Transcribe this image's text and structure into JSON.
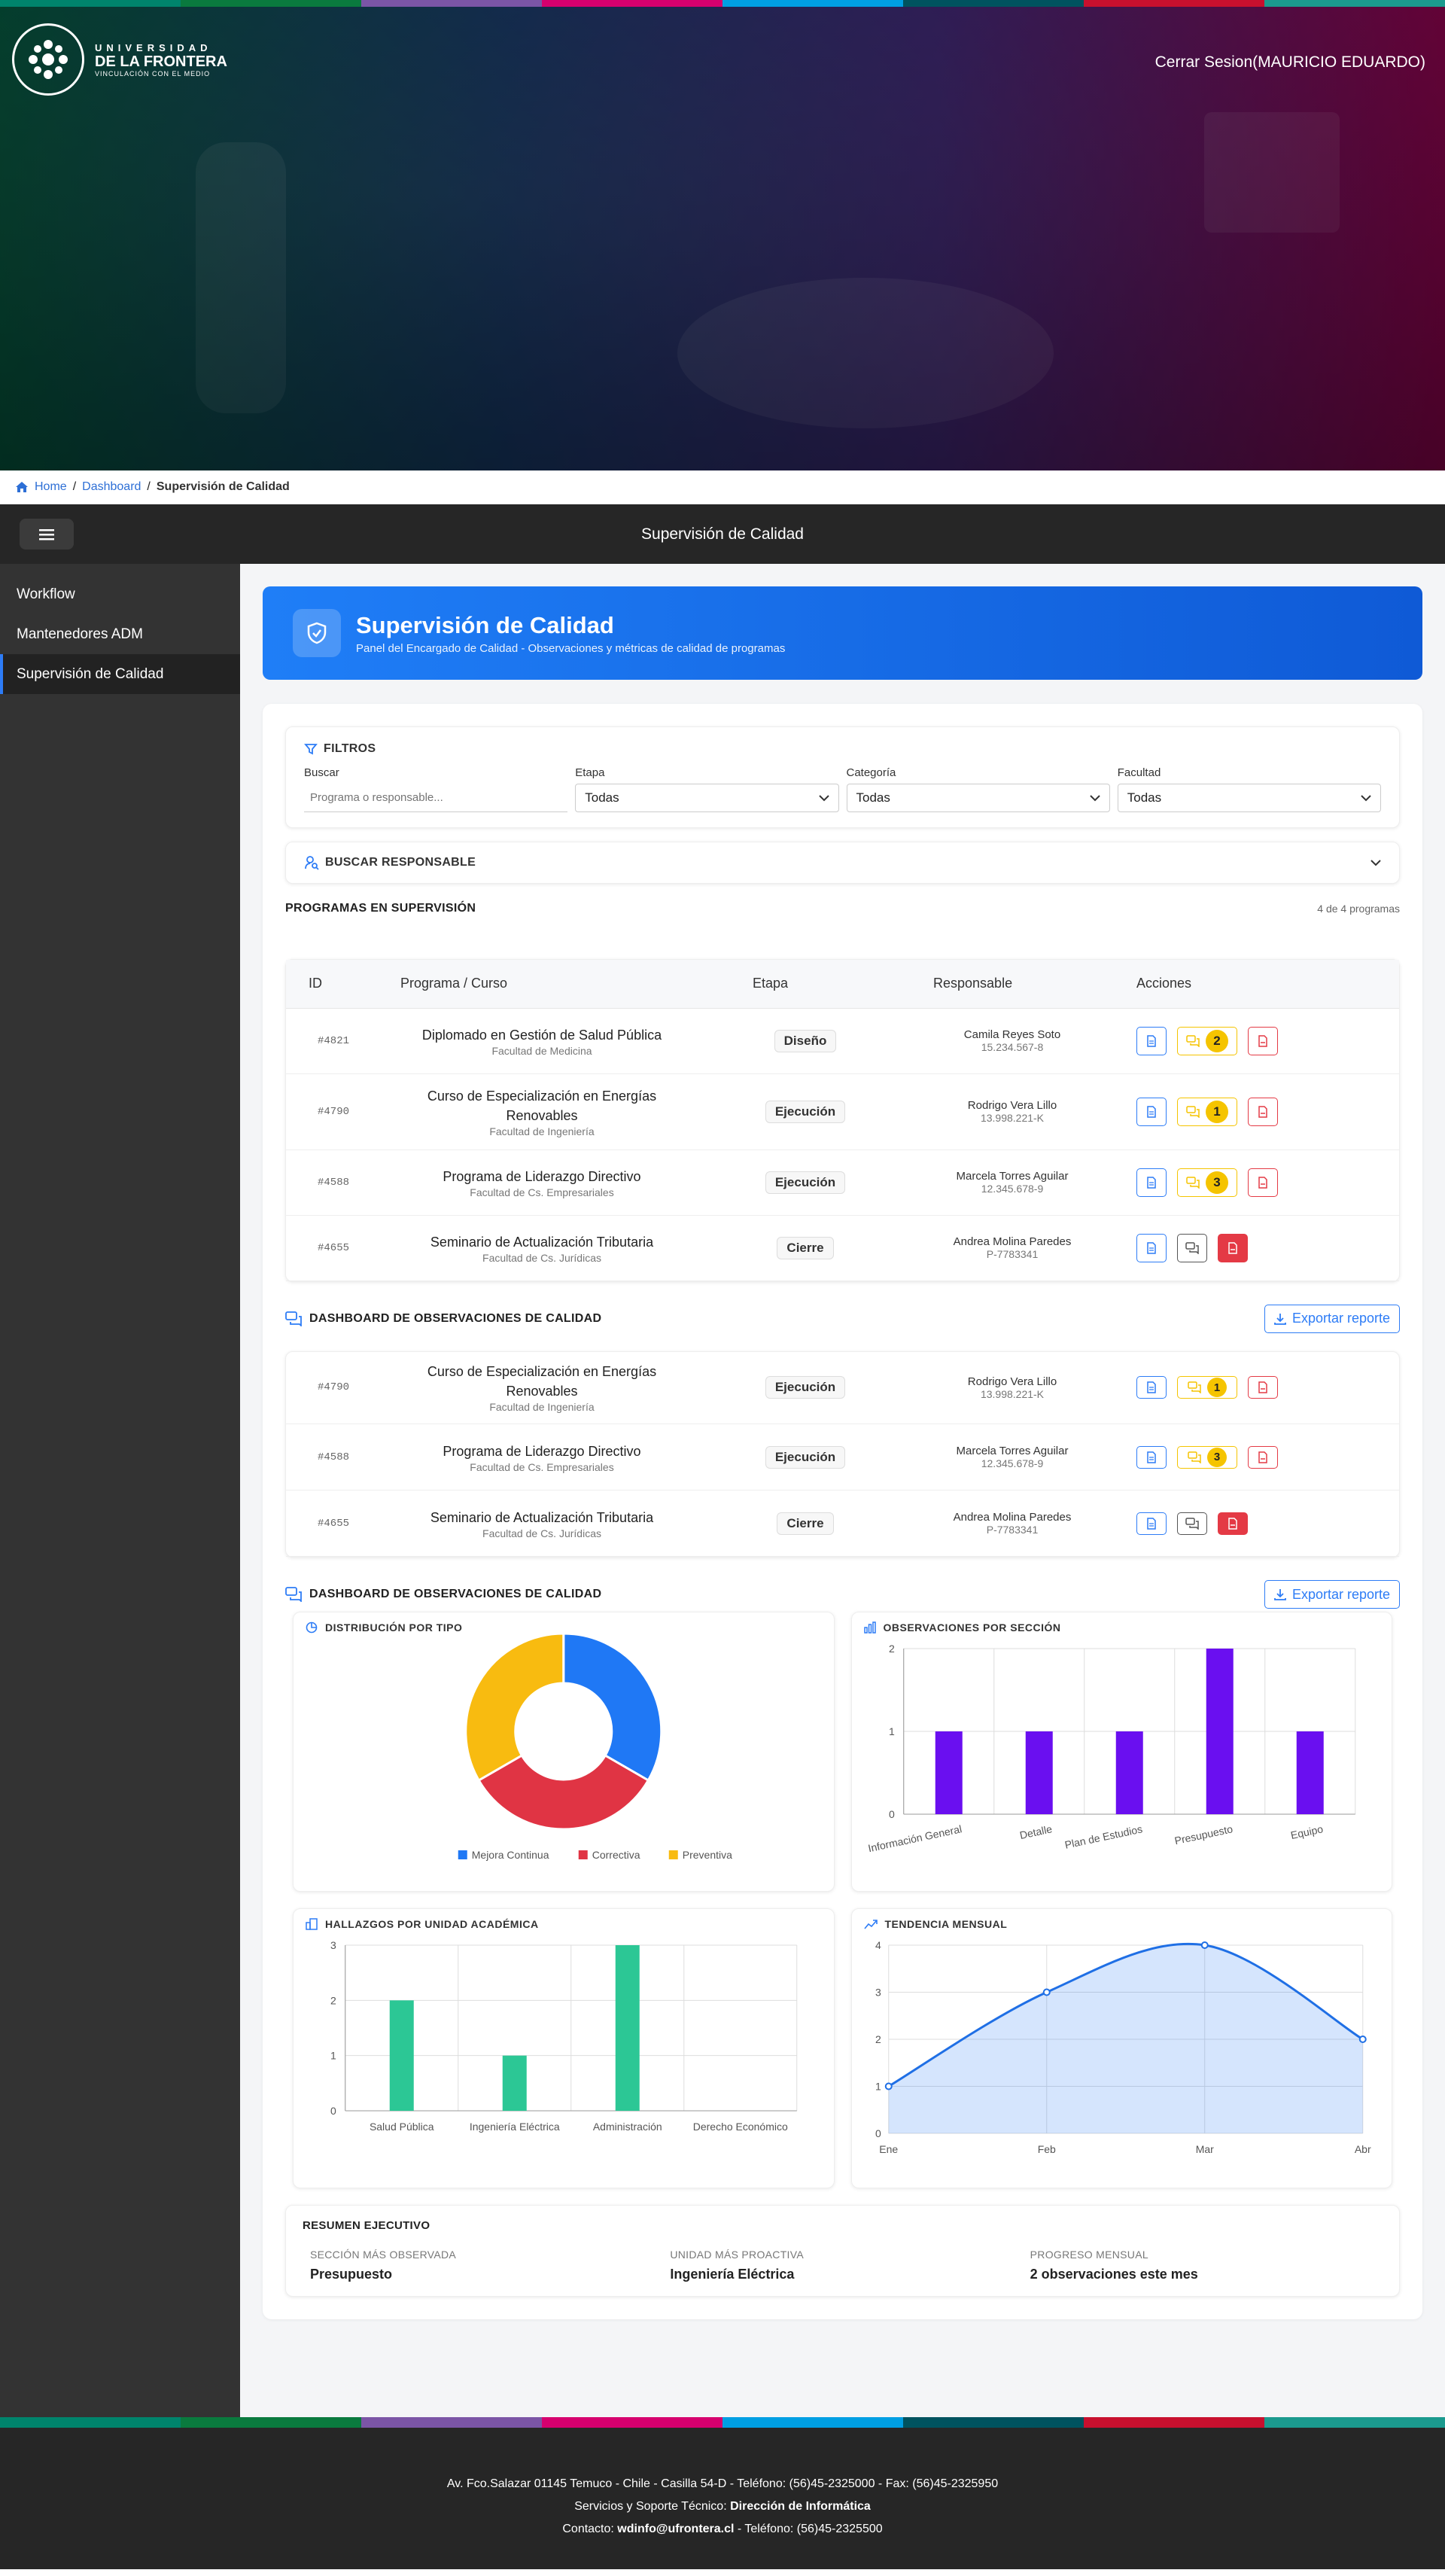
{
  "colors": {
    "stripe": [
      "#00846c",
      "#0a7a3e",
      "#7b55a6",
      "#d6006e",
      "#009fe3",
      "#00535f",
      "#c8102e",
      "#1b9a8e"
    ],
    "accent": "#2d7cf6",
    "warn": "#f5c400",
    "danger": "#e43a45",
    "green": "#2cc795",
    "purple": "#6a0ff0"
  },
  "header": {
    "logo_text1": "UNIVERSIDAD",
    "logo_text2": "DE LA FRONTERA",
    "logo_text3": "VINCULACIÓN CON EL MEDIO",
    "logout": "Cerrar Sesion(MAURICIO EDUARDO)"
  },
  "breadcrumb": {
    "home": "Home",
    "dashboard": "Dashboard",
    "current": "Supervisión de Calidad"
  },
  "topbar": {
    "title": "Supervisión de Calidad"
  },
  "sidebar": {
    "items": [
      {
        "label": "Workflow"
      },
      {
        "label": "Mantenedores ADM"
      },
      {
        "label": "Supervisión de Calidad"
      }
    ]
  },
  "page": {
    "title": "Supervisión de Calidad",
    "subtitle": "Panel del Encargado de Calidad - Observaciones y métricas de calidad de programas"
  },
  "filters": {
    "title": "FILTROS",
    "buscar_label": "Buscar",
    "buscar_placeholder": "Programa o responsable...",
    "etapa_label": "Etapa",
    "etapa_value": "Todas",
    "categoria_label": "Categoría",
    "categoria_value": "Todas",
    "facultad_label": "Facultad",
    "facultad_value": "Todas"
  },
  "search_resp": {
    "title": "BUSCAR RESPONSABLE"
  },
  "programs": {
    "title": "PROGRAMAS EN SUPERVISIÓN",
    "count": "4 de 4 programas",
    "headers": [
      "ID",
      "Programa / Curso",
      "Etapa",
      "Responsable",
      "Acciones"
    ],
    "rows": [
      {
        "id": "#4821",
        "name": "Diplomado en Gestión de Salud Pública",
        "faculty": "Facultad de Medicina",
        "stage": "Diseño",
        "resp": "Camila Reyes Soto",
        "rut": "15.234.567-8",
        "obs": "2"
      },
      {
        "id": "#4790",
        "name": "Curso de Especialización en Energías Renovables",
        "faculty": "Facultad de Ingeniería",
        "stage": "Ejecución",
        "resp": "Rodrigo Vera Lillo",
        "rut": "13.998.221-K",
        "obs": "1"
      },
      {
        "id": "#4588",
        "name": "Programa de Liderazgo Directivo",
        "faculty": "Facultad de Cs. Empresariales",
        "stage": "Ejecución",
        "resp": "Marcela Torres Aguilar",
        "rut": "12.345.678-9",
        "obs": "3"
      },
      {
        "id": "#4655",
        "name": "Seminario de Actualización Tributaria",
        "faculty": "Facultad de Cs. Jurídicas",
        "stage": "Cierre",
        "resp": "Andrea Molina Paredes",
        "rut": "P-7783341",
        "obs": ""
      }
    ]
  },
  "dashboard": {
    "title": "DASHBOARD DE OBSERVACIONES DE CALIDAD",
    "export": "Exportar reporte"
  },
  "charts": {
    "pie": {
      "title": "DISTRIBUCIÓN POR TIPO"
    },
    "bar1": {
      "title": "OBSERVACIONES POR SECCIÓN"
    },
    "bar2": {
      "title": "HALLAZGOS POR UNIDAD ACADÉMICA"
    },
    "line": {
      "title": "TENDENCIA MENSUAL"
    }
  },
  "chart_data": [
    {
      "type": "pie",
      "title": "DISTRIBUCIÓN POR TIPO",
      "categories": [
        "Mejora Continua",
        "Correctiva",
        "Preventiva"
      ],
      "values": [
        1,
        1,
        1
      ],
      "colors": [
        "#1f78f5",
        "#e03444",
        "#f8bb10"
      ],
      "legend": "bottom"
    },
    {
      "type": "bar",
      "title": "OBSERVACIONES POR SECCIÓN",
      "categories": [
        "Información General",
        "Detalle",
        "Plan de Estudios",
        "Presupuesto",
        "Equipo"
      ],
      "values": [
        1,
        1,
        1,
        2,
        1
      ],
      "ylim": [
        0,
        2
      ],
      "yticks": [
        "0",
        "1",
        "2"
      ],
      "grid": true
    },
    {
      "type": "bar",
      "title": "HALLAZGOS POR UNIDAD ACADÉMICA",
      "categories": [
        "Salud Pública",
        "Ingeniería Eléctrica",
        "Administración",
        "Derecho Económico"
      ],
      "values": [
        2,
        1,
        3,
        0
      ],
      "ylim": [
        0,
        3
      ],
      "yticks": [
        "0",
        "1",
        "2",
        "3"
      ],
      "grid": true
    },
    {
      "type": "area",
      "title": "TENDENCIA MENSUAL",
      "categories": [
        "Ene",
        "Feb",
        "Mar",
        "Abr"
      ],
      "values": [
        1,
        3,
        4,
        2
      ],
      "ylim": [
        0,
        4
      ],
      "yticks": [
        "0",
        "1",
        "2",
        "3",
        "4"
      ],
      "grid": true
    }
  ],
  "summary": {
    "title": "RESUMEN EJECUTIVO",
    "c1_label": "SECCIÓN MÁS OBSERVADA",
    "c1_value": "Presupuesto",
    "c2_label": "UNIDAD MÁS PROACTIVA",
    "c2_value": "Ingeniería Eléctrica",
    "c3_label": "PROGRESO MENSUAL",
    "c3_value": "2 observaciones este mes"
  },
  "footer": {
    "line1": "Av. Fco.Salazar 01145 Temuco - Chile - Casilla 54-D - Teléfono: (56)45-2325000 - Fax: (56)45-2325950",
    "line2_pre": "Servicios y Soporte Técnico: ",
    "line2_b": "Dirección de Informática",
    "line3_pre": "Contacto: ",
    "line3_b": "wdinfo@ufrontera.cl",
    "line3_post": " - Teléfono: (56)45-2325500"
  }
}
